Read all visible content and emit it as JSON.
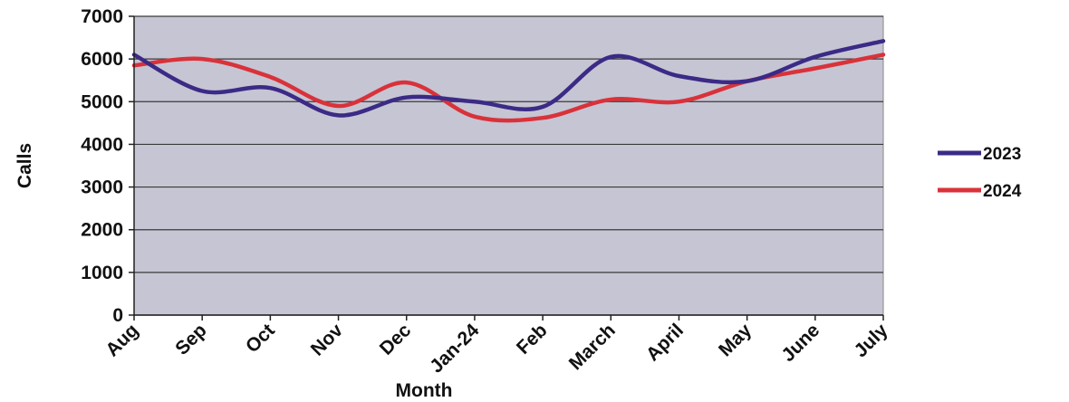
{
  "chart_data": {
    "type": "line",
    "title": "",
    "xlabel": "Month",
    "ylabel": "Calls",
    "categories": [
      "Aug",
      "Sep",
      "Oct",
      "Nov",
      "Dec",
      "Jan-24",
      "Feb",
      "March",
      "April",
      "May",
      "June",
      "July"
    ],
    "ylim": [
      0,
      7000
    ],
    "yticks": [
      "0",
      "1000",
      "2000",
      "3000",
      "4000",
      "5000",
      "6000",
      "7000"
    ],
    "grid": true,
    "legend_position": "right",
    "series": [
      {
        "name": "2023",
        "color": "#3b2a86",
        "values": [
          6100,
          5250,
          5320,
          4680,
          5100,
          5000,
          4880,
          6050,
          5600,
          5480,
          6050,
          6420
        ]
      },
      {
        "name": "2024",
        "color": "#d9323a",
        "values": [
          5850,
          6000,
          5580,
          4900,
          5450,
          4650,
          4620,
          5050,
          5000,
          5480,
          5780,
          6100
        ]
      }
    ],
    "plot_background": "#c6c5d3"
  }
}
